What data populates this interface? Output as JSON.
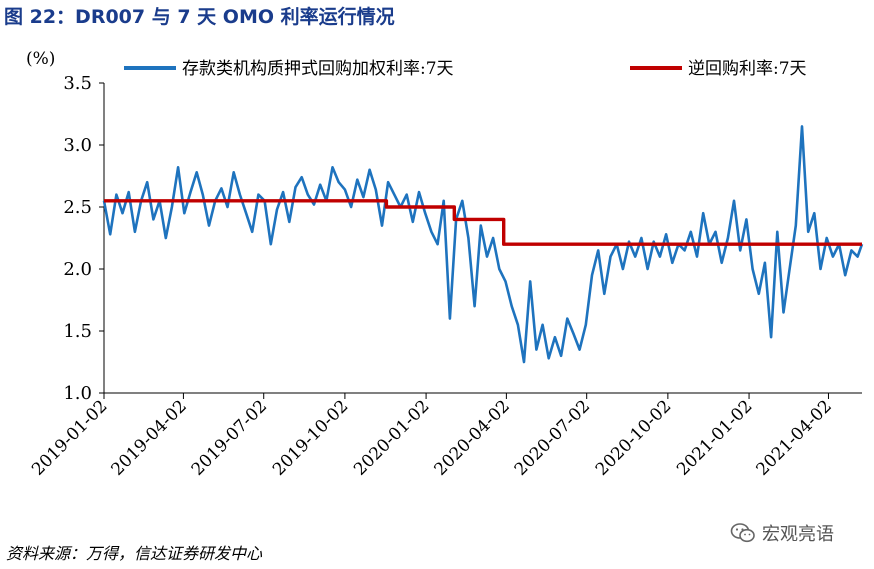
{
  "figure": {
    "title": "图 22：DR007 与 7 天 OMO 利率运行情况",
    "source": "资料来源：万得，信达证券研发中心",
    "watermark": "宏观亮语",
    "watermark_icon": "wechat-icon"
  },
  "chart_data": {
    "type": "line",
    "ylabel": "(%)",
    "ylim": [
      1.0,
      3.5
    ],
    "yticks": [
      "3.5",
      "3.0",
      "2.5",
      "2.0",
      "1.5",
      "1.0"
    ],
    "xlim": [
      "2019-01-02",
      "2021-05-10"
    ],
    "xticks": [
      "2019-01-02",
      "2019-04-02",
      "2019-07-02",
      "2019-10-02",
      "2020-01-02",
      "2020-04-02",
      "2020-07-02",
      "2020-10-02",
      "2021-01-02",
      "2021-04-02"
    ],
    "grid": false,
    "legend_position": "top",
    "series": [
      {
        "name": "存款类机构质押式回购加权利率:7天",
        "color": "#1e73be",
        "points": [
          [
            "2019-01-02",
            2.55
          ],
          [
            "2019-01-09",
            2.28
          ],
          [
            "2019-01-16",
            2.6
          ],
          [
            "2019-01-23",
            2.45
          ],
          [
            "2019-01-30",
            2.62
          ],
          [
            "2019-02-06",
            2.3
          ],
          [
            "2019-02-13",
            2.55
          ],
          [
            "2019-02-20",
            2.7
          ],
          [
            "2019-02-27",
            2.4
          ],
          [
            "2019-03-06",
            2.55
          ],
          [
            "2019-03-13",
            2.25
          ],
          [
            "2019-03-20",
            2.5
          ],
          [
            "2019-03-27",
            2.82
          ],
          [
            "2019-04-03",
            2.45
          ],
          [
            "2019-04-10",
            2.62
          ],
          [
            "2019-04-17",
            2.78
          ],
          [
            "2019-04-24",
            2.6
          ],
          [
            "2019-05-01",
            2.35
          ],
          [
            "2019-05-08",
            2.55
          ],
          [
            "2019-05-15",
            2.65
          ],
          [
            "2019-05-22",
            2.5
          ],
          [
            "2019-05-29",
            2.78
          ],
          [
            "2019-06-05",
            2.6
          ],
          [
            "2019-06-12",
            2.45
          ],
          [
            "2019-06-19",
            2.3
          ],
          [
            "2019-06-26",
            2.6
          ],
          [
            "2019-07-03",
            2.55
          ],
          [
            "2019-07-10",
            2.2
          ],
          [
            "2019-07-17",
            2.48
          ],
          [
            "2019-07-24",
            2.62
          ],
          [
            "2019-07-31",
            2.38
          ],
          [
            "2019-08-07",
            2.66
          ],
          [
            "2019-08-14",
            2.74
          ],
          [
            "2019-08-21",
            2.6
          ],
          [
            "2019-08-28",
            2.52
          ],
          [
            "2019-09-04",
            2.68
          ],
          [
            "2019-09-11",
            2.55
          ],
          [
            "2019-09-18",
            2.82
          ],
          [
            "2019-09-25",
            2.7
          ],
          [
            "2019-10-02",
            2.64
          ],
          [
            "2019-10-09",
            2.5
          ],
          [
            "2019-10-16",
            2.72
          ],
          [
            "2019-10-23",
            2.58
          ],
          [
            "2019-10-30",
            2.8
          ],
          [
            "2019-11-06",
            2.64
          ],
          [
            "2019-11-13",
            2.35
          ],
          [
            "2019-11-20",
            2.7
          ],
          [
            "2019-11-27",
            2.6
          ],
          [
            "2019-12-04",
            2.5
          ],
          [
            "2019-12-11",
            2.6
          ],
          [
            "2019-12-18",
            2.38
          ],
          [
            "2019-12-25",
            2.62
          ],
          [
            "2020-01-01",
            2.45
          ],
          [
            "2020-01-08",
            2.3
          ],
          [
            "2020-01-15",
            2.2
          ],
          [
            "2020-01-22",
            2.55
          ],
          [
            "2020-01-29",
            1.6
          ],
          [
            "2020-02-05",
            2.4
          ],
          [
            "2020-02-12",
            2.55
          ],
          [
            "2020-02-19",
            2.25
          ],
          [
            "2020-02-26",
            1.7
          ],
          [
            "2020-03-04",
            2.35
          ],
          [
            "2020-03-11",
            2.1
          ],
          [
            "2020-03-18",
            2.25
          ],
          [
            "2020-03-25",
            2.0
          ],
          [
            "2020-04-01",
            1.9
          ],
          [
            "2020-04-08",
            1.7
          ],
          [
            "2020-04-15",
            1.55
          ],
          [
            "2020-04-22",
            1.25
          ],
          [
            "2020-04-29",
            1.9
          ],
          [
            "2020-05-06",
            1.35
          ],
          [
            "2020-05-13",
            1.55
          ],
          [
            "2020-05-20",
            1.28
          ],
          [
            "2020-05-27",
            1.45
          ],
          [
            "2020-06-03",
            1.3
          ],
          [
            "2020-06-10",
            1.6
          ],
          [
            "2020-06-17",
            1.48
          ],
          [
            "2020-06-24",
            1.35
          ],
          [
            "2020-07-01",
            1.55
          ],
          [
            "2020-07-08",
            1.95
          ],
          [
            "2020-07-15",
            2.15
          ],
          [
            "2020-07-22",
            1.8
          ],
          [
            "2020-07-29",
            2.1
          ],
          [
            "2020-08-05",
            2.2
          ],
          [
            "2020-08-12",
            2.0
          ],
          [
            "2020-08-19",
            2.22
          ],
          [
            "2020-08-26",
            2.1
          ],
          [
            "2020-09-02",
            2.25
          ],
          [
            "2020-09-09",
            2.0
          ],
          [
            "2020-09-16",
            2.22
          ],
          [
            "2020-09-23",
            2.1
          ],
          [
            "2020-09-30",
            2.28
          ],
          [
            "2020-10-07",
            2.05
          ],
          [
            "2020-10-14",
            2.2
          ],
          [
            "2020-10-21",
            2.15
          ],
          [
            "2020-10-28",
            2.3
          ],
          [
            "2020-11-04",
            2.1
          ],
          [
            "2020-11-11",
            2.45
          ],
          [
            "2020-11-18",
            2.2
          ],
          [
            "2020-11-25",
            2.3
          ],
          [
            "2020-12-02",
            2.05
          ],
          [
            "2020-12-09",
            2.25
          ],
          [
            "2020-12-16",
            2.55
          ],
          [
            "2020-12-23",
            2.15
          ],
          [
            "2020-12-30",
            2.4
          ],
          [
            "2021-01-06",
            2.0
          ],
          [
            "2021-01-13",
            1.8
          ],
          [
            "2021-01-20",
            2.05
          ],
          [
            "2021-01-27",
            1.45
          ],
          [
            "2021-02-03",
            2.3
          ],
          [
            "2021-02-10",
            1.65
          ],
          [
            "2021-02-17",
            2.0
          ],
          [
            "2021-02-24",
            2.35
          ],
          [
            "2021-03-03",
            3.15
          ],
          [
            "2021-03-10",
            2.3
          ],
          [
            "2021-03-17",
            2.45
          ],
          [
            "2021-03-24",
            2.0
          ],
          [
            "2021-03-31",
            2.25
          ],
          [
            "2021-04-07",
            2.1
          ],
          [
            "2021-04-14",
            2.2
          ],
          [
            "2021-04-21",
            1.95
          ],
          [
            "2021-04-28",
            2.15
          ],
          [
            "2021-05-05",
            2.1
          ],
          [
            "2021-05-10",
            2.2
          ]
        ]
      },
      {
        "name": "逆回购利率:7天",
        "color": "#c00000",
        "step": true,
        "points": [
          [
            "2019-01-02",
            2.55
          ],
          [
            "2019-11-18",
            2.55
          ],
          [
            "2019-11-18",
            2.5
          ],
          [
            "2020-02-03",
            2.5
          ],
          [
            "2020-02-03",
            2.4
          ],
          [
            "2020-03-30",
            2.4
          ],
          [
            "2020-03-30",
            2.2
          ],
          [
            "2021-05-10",
            2.2
          ]
        ]
      }
    ]
  }
}
